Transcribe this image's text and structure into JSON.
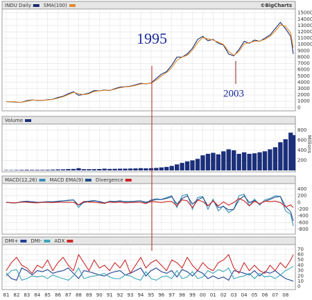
{
  "chart_data": [
    {
      "type": "line",
      "credit": "©BigCharts",
      "annotations": [
        "1995",
        "2003"
      ],
      "x": [
        1981,
        1981.5,
        1982,
        1982.5,
        1983,
        1983.5,
        1984,
        1984.5,
        1985,
        1985.5,
        1986,
        1986.5,
        1987,
        1987.5,
        1988,
        1988.5,
        1989,
        1989.5,
        1990,
        1990.5,
        1991,
        1991.5,
        1992,
        1992.5,
        1993,
        1993.5,
        1994,
        1994.5,
        1995,
        1995.5,
        1996,
        1996.5,
        1997,
        1997.5,
        1998,
        1998.5,
        1999,
        1999.5,
        2000,
        2000.5,
        2001,
        2001.5,
        2002,
        2002.5,
        2003,
        2003.5,
        2004,
        2004.5,
        2005,
        2005.5,
        2006,
        2006.5,
        2007,
        2007.5,
        2008,
        2008.5,
        2008.75
      ],
      "series": [
        {
          "name": "INDU Daily",
          "color": "#1a2a6c",
          "values": [
            950,
            900,
            850,
            850,
            1100,
            1220,
            1150,
            1150,
            1250,
            1330,
            1600,
            1800,
            2200,
            2500,
            1950,
            2100,
            2300,
            2700,
            2650,
            2800,
            2700,
            3000,
            3250,
            3300,
            3400,
            3600,
            3850,
            3750,
            3900,
            4600,
            5300,
            5700,
            6700,
            8000,
            8000,
            8500,
            9400,
            10800,
            11300,
            10600,
            10800,
            10200,
            9900,
            8500,
            8200,
            9200,
            10500,
            10200,
            10700,
            10500,
            11000,
            11500,
            12500,
            13500,
            12500,
            11300,
            8500
          ]
        },
        {
          "name": "SMA(100)",
          "color": "#e08a2c",
          "values": [
            960,
            930,
            880,
            850,
            1000,
            1180,
            1180,
            1150,
            1200,
            1300,
            1500,
            1720,
            2050,
            2400,
            2200,
            2050,
            2200,
            2550,
            2650,
            2750,
            2750,
            2900,
            3150,
            3280,
            3350,
            3520,
            3750,
            3800,
            3850,
            4350,
            5000,
            5550,
            6300,
            7500,
            8000,
            8300,
            9100,
            10300,
            11100,
            10900,
            10700,
            10400,
            10000,
            8900,
            8300,
            8900,
            10100,
            10300,
            10500,
            10550,
            10800,
            11300,
            12100,
            13100,
            12900,
            11800,
            9500
          ]
        }
      ],
      "ylim": [
        -300,
        15300
      ],
      "yticks": [
        0,
        1000,
        2000,
        3000,
        4000,
        5000,
        6000,
        7000,
        8000,
        9000,
        10000,
        11000,
        12000,
        13000,
        14000,
        15000
      ]
    },
    {
      "type": "bar",
      "y_label": "Millions",
      "x": [
        1981,
        1981.5,
        1982,
        1982.5,
        1983,
        1983.5,
        1984,
        1984.5,
        1985,
        1985.5,
        1986,
        1986.5,
        1987,
        1987.5,
        1988,
        1988.5,
        1989,
        1989.5,
        1990,
        1990.5,
        1991,
        1991.5,
        1992,
        1992.5,
        1993,
        1993.5,
        1994,
        1994.5,
        1995,
        1995.5,
        1996,
        1996.5,
        1997,
        1997.5,
        1998,
        1998.5,
        1999,
        1999.5,
        2000,
        2000.5,
        2001,
        2001.5,
        2002,
        2002.5,
        2003,
        2003.5,
        2004,
        2004.5,
        2005,
        2005.5,
        2006,
        2006.5,
        2007,
        2007.5,
        2008,
        2008.5,
        2008.75
      ],
      "series": [
        {
          "name": "Volume",
          "color": "#1b2f7a",
          "values": [
            8,
            8,
            10,
            12,
            14,
            12,
            12,
            12,
            14,
            16,
            20,
            22,
            28,
            30,
            45,
            25,
            25,
            25,
            28,
            35,
            30,
            32,
            35,
            35,
            38,
            40,
            45,
            42,
            45,
            50,
            60,
            70,
            90,
            120,
            150,
            180,
            200,
            230,
            300,
            330,
            350,
            320,
            380,
            420,
            400,
            330,
            360,
            330,
            340,
            360,
            380,
            420,
            460,
            560,
            620,
            750,
            700
          ]
        }
      ],
      "ylim": [
        0,
        880
      ],
      "yticks": [
        200,
        400,
        600,
        800
      ]
    },
    {
      "type": "line",
      "x": [
        1981,
        1981.5,
        1982,
        1982.5,
        1983,
        1983.5,
        1984,
        1984.5,
        1985,
        1985.5,
        1986,
        1986.5,
        1987,
        1987.5,
        1988,
        1988.5,
        1989,
        1989.5,
        1990,
        1990.5,
        1991,
        1991.5,
        1992,
        1992.5,
        1993,
        1993.5,
        1994,
        1994.5,
        1995,
        1995.5,
        1996,
        1996.5,
        1997,
        1997.5,
        1998,
        1998.5,
        1999,
        1999.5,
        2000,
        2000.5,
        2001,
        2001.5,
        2002,
        2002.5,
        2003,
        2003.5,
        2004,
        2004.5,
        2005,
        2005.5,
        2006,
        2006.5,
        2007,
        2007.5,
        2008,
        2008.5,
        2008.75
      ],
      "series": [
        {
          "name": "MACD(12,26)",
          "color": "#3a8fb7",
          "values": [
            10,
            -15,
            -10,
            30,
            40,
            20,
            -5,
            15,
            25,
            20,
            40,
            50,
            70,
            80,
            -150,
            30,
            40,
            60,
            20,
            -30,
            40,
            30,
            50,
            20,
            30,
            40,
            50,
            -20,
            80,
            110,
            90,
            150,
            200,
            -150,
            200,
            250,
            -200,
            150,
            180,
            -200,
            100,
            -250,
            -100,
            -300,
            -200,
            200,
            250,
            -100,
            100,
            -80,
            80,
            120,
            200,
            180,
            -250,
            -350,
            -700
          ]
        },
        {
          "name": "MACD EMA(9)",
          "color": "#1f4e8c",
          "values": [
            5,
            -5,
            -8,
            15,
            30,
            25,
            5,
            10,
            20,
            20,
            30,
            45,
            60,
            75,
            -80,
            0,
            30,
            50,
            30,
            -10,
            25,
            30,
            40,
            30,
            30,
            35,
            45,
            10,
            50,
            90,
            90,
            120,
            170,
            -50,
            120,
            200,
            -50,
            80,
            150,
            -100,
            50,
            -150,
            -120,
            -220,
            -200,
            80,
            200,
            0,
            60,
            -40,
            40,
            90,
            160,
            180,
            -120,
            -280,
            -550
          ]
        },
        {
          "name": "Divergence",
          "color": "#cc2222",
          "values": [
            5,
            -10,
            -2,
            15,
            10,
            -5,
            -10,
            5,
            5,
            0,
            10,
            5,
            10,
            5,
            -70,
            30,
            10,
            10,
            -10,
            -20,
            15,
            0,
            10,
            -10,
            0,
            5,
            5,
            -30,
            30,
            20,
            0,
            30,
            30,
            -100,
            80,
            50,
            -150,
            70,
            30,
            -100,
            50,
            -100,
            20,
            -80,
            0,
            120,
            50,
            -100,
            40,
            -40,
            40,
            30,
            40,
            0,
            -130,
            -70,
            -150
          ]
        }
      ],
      "ylim": [
        -900,
        500
      ],
      "yticks": [
        400,
        200,
        0,
        -200,
        -400,
        -600,
        -800
      ]
    },
    {
      "type": "line",
      "x": [
        1981,
        1981.5,
        1982,
        1982.5,
        1983,
        1983.5,
        1984,
        1984.5,
        1985,
        1985.5,
        1986,
        1986.5,
        1987,
        1987.5,
        1988,
        1988.5,
        1989,
        1989.5,
        1990,
        1990.5,
        1991,
        1991.5,
        1992,
        1992.5,
        1993,
        1993.5,
        1994,
        1994.5,
        1995,
        1995.5,
        1996,
        1996.5,
        1997,
        1997.5,
        1998,
        1998.5,
        1999,
        1999.5,
        2000,
        2000.5,
        2001,
        2001.5,
        2002,
        2002.5,
        2003,
        2003.5,
        2004,
        2004.5,
        2005,
        2005.5,
        2006,
        2006.5,
        2007,
        2007.5,
        2008,
        2008.5,
        2008.75
      ],
      "series": [
        {
          "name": "DMI+",
          "color": "#1f3f8f",
          "values": [
            25,
            15,
            12,
            35,
            30,
            22,
            30,
            28,
            32,
            25,
            28,
            30,
            35,
            25,
            15,
            30,
            28,
            25,
            22,
            20,
            25,
            28,
            30,
            22,
            25,
            30,
            35,
            20,
            30,
            35,
            28,
            25,
            30,
            18,
            32,
            28,
            20,
            30,
            25,
            15,
            20,
            15,
            18,
            12,
            30,
            28,
            25,
            22,
            30,
            20,
            28,
            25,
            30,
            22,
            15,
            12,
            10
          ]
        },
        {
          "name": "DMI-",
          "color": "#3aa6b9",
          "values": [
            20,
            30,
            32,
            12,
            15,
            20,
            18,
            20,
            15,
            22,
            18,
            15,
            12,
            20,
            35,
            15,
            18,
            20,
            22,
            25,
            18,
            15,
            15,
            22,
            20,
            15,
            12,
            28,
            15,
            12,
            18,
            20,
            15,
            30,
            15,
            18,
            28,
            15,
            18,
            30,
            25,
            32,
            28,
            35,
            15,
            18,
            20,
            25,
            15,
            25,
            18,
            20,
            15,
            22,
            30,
            35,
            38
          ]
        },
        {
          "name": "ADX",
          "color": "#cc2a2a",
          "values": [
            30,
            45,
            55,
            40,
            35,
            25,
            40,
            35,
            50,
            30,
            45,
            55,
            40,
            30,
            60,
            45,
            30,
            50,
            35,
            40,
            30,
            45,
            35,
            50,
            25,
            40,
            55,
            35,
            45,
            50,
            40,
            30,
            50,
            45,
            35,
            55,
            40,
            30,
            45,
            35,
            30,
            45,
            50,
            60,
            35,
            25,
            45,
            30,
            40,
            30,
            25,
            40,
            30,
            45,
            35,
            50,
            60
          ]
        }
      ],
      "ylim": [
        -3,
        75
      ],
      "yticks": [
        0,
        10,
        20,
        30,
        40,
        50,
        60,
        70
      ],
      "xlim": [
        1980.6,
        2008.95
      ],
      "xticks": [
        {
          "value": 1981,
          "label": "81"
        },
        {
          "value": 1982,
          "label": "82"
        },
        {
          "value": 1983,
          "label": "83"
        },
        {
          "value": 1984,
          "label": "84"
        },
        {
          "value": 1985,
          "label": "85"
        },
        {
          "value": 1986,
          "label": "86"
        },
        {
          "value": 1987,
          "label": "87"
        },
        {
          "value": 1988,
          "label": "88"
        },
        {
          "value": 1989,
          "label": "89"
        },
        {
          "value": 1990,
          "label": "90"
        },
        {
          "value": 1991,
          "label": "91"
        },
        {
          "value": 1992,
          "label": "92"
        },
        {
          "value": 1993,
          "label": "93"
        },
        {
          "value": 1994,
          "label": "94"
        },
        {
          "value": 1995,
          "label": "95"
        },
        {
          "value": 1996,
          "label": "96"
        },
        {
          "value": 1997,
          "label": "97"
        },
        {
          "value": 1998,
          "label": "98"
        },
        {
          "value": 1999,
          "label": "99"
        },
        {
          "value": 2000,
          "label": "00"
        },
        {
          "value": 2001,
          "label": "01"
        },
        {
          "value": 2002,
          "label": "02"
        },
        {
          "value": 2003,
          "label": "03"
        },
        {
          "value": 2004,
          "label": "04"
        },
        {
          "value": 2005,
          "label": "05"
        },
        {
          "value": 2006,
          "label": "06"
        },
        {
          "value": 2007,
          "label": "07"
        },
        {
          "value": 2008,
          "label": "08"
        }
      ]
    }
  ]
}
